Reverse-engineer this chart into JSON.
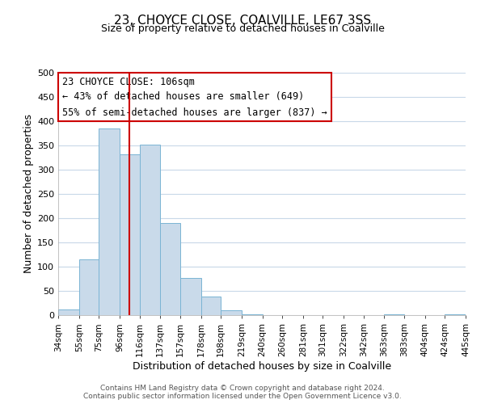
{
  "title": "23, CHOYCE CLOSE, COALVILLE, LE67 3SS",
  "subtitle": "Size of property relative to detached houses in Coalville",
  "xlabel": "Distribution of detached houses by size in Coalville",
  "ylabel": "Number of detached properties",
  "bar_edges": [
    34,
    55,
    75,
    96,
    116,
    137,
    157,
    178,
    198,
    219,
    240,
    260,
    281,
    301,
    322,
    342,
    363,
    383,
    404,
    424,
    445
  ],
  "bar_heights": [
    12,
    115,
    385,
    332,
    352,
    190,
    76,
    38,
    10,
    2,
    0,
    0,
    0,
    0,
    0,
    0,
    1,
    0,
    0,
    1
  ],
  "bar_color": "#c9daea",
  "bar_edge_color": "#7ab4d4",
  "property_size": 106,
  "vline_color": "#cc0000",
  "annotation_box_color": "#cc0000",
  "annotation_lines": [
    "23 CHOYCE CLOSE: 106sqm",
    "← 43% of detached houses are smaller (649)",
    "55% of semi-detached houses are larger (837) →"
  ],
  "annotation_fontsize": 8.5,
  "ylim": [
    0,
    500
  ],
  "yticks": [
    0,
    50,
    100,
    150,
    200,
    250,
    300,
    350,
    400,
    450,
    500
  ],
  "xtick_labels": [
    "34sqm",
    "55sqm",
    "75sqm",
    "96sqm",
    "116sqm",
    "137sqm",
    "157sqm",
    "178sqm",
    "198sqm",
    "219sqm",
    "240sqm",
    "260sqm",
    "281sqm",
    "301sqm",
    "322sqm",
    "342sqm",
    "363sqm",
    "383sqm",
    "404sqm",
    "424sqm",
    "445sqm"
  ],
  "footer_lines": [
    "Contains HM Land Registry data © Crown copyright and database right 2024.",
    "Contains public sector information licensed under the Open Government Licence v3.0."
  ],
  "background_color": "#ffffff",
  "grid_color": "#c8d8e8",
  "title_fontsize": 11,
  "subtitle_fontsize": 9,
  "xlabel_fontsize": 9,
  "ylabel_fontsize": 9,
  "ytick_fontsize": 8,
  "xtick_fontsize": 7.5
}
